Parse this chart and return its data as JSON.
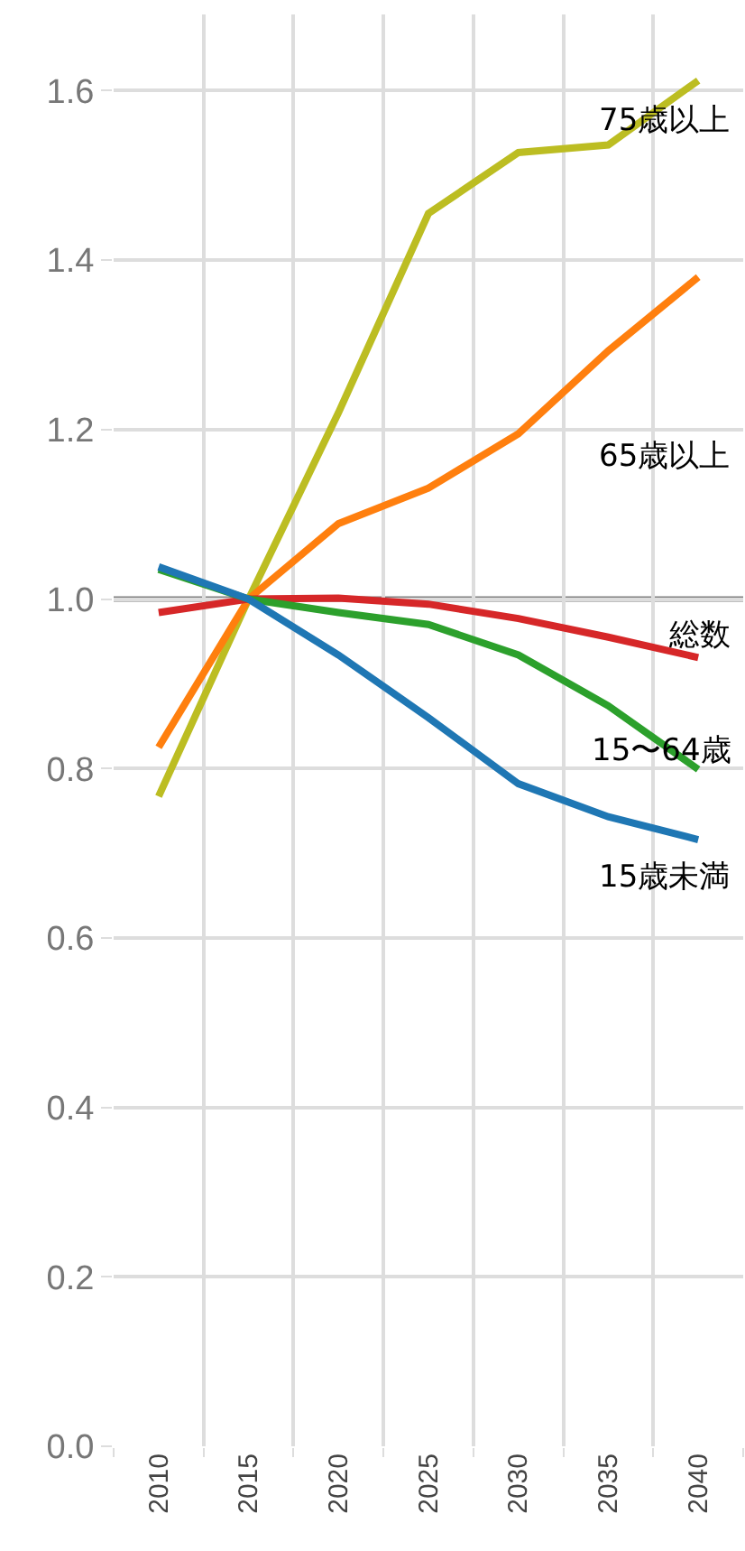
{
  "chart_data": {
    "type": "line",
    "categories": [
      "2010",
      "2015",
      "2020",
      "2025",
      "2030",
      "2035",
      "2040"
    ],
    "series": [
      {
        "name": "75歳以上",
        "color": "#bcbd22",
        "values": [
          0.767,
          1.0,
          1.22,
          1.455,
          1.527,
          1.536,
          1.612
        ]
      },
      {
        "name": "65歳以上",
        "color": "#ff7f0e",
        "values": [
          0.825,
          1.0,
          1.089,
          1.131,
          1.195,
          1.293,
          1.38
        ]
      },
      {
        "name": "総数",
        "color": "#d62728",
        "values": [
          0.984,
          1.0,
          1.001,
          0.994,
          0.977,
          0.955,
          0.931
        ]
      },
      {
        "name": "15〜64歳",
        "color": "#2ca02c",
        "values": [
          1.035,
          1.0,
          0.984,
          0.97,
          0.934,
          0.874,
          0.799
        ]
      },
      {
        "name": "15歳未満",
        "color": "#1f77b4",
        "values": [
          1.038,
          1.0,
          0.934,
          0.86,
          0.782,
          0.743,
          0.716
        ]
      }
    ],
    "ylim": [
      0,
      1.69
    ],
    "yticks": [
      {
        "value": 0,
        "label": "0.0"
      },
      0.2,
      0.4,
      0.6,
      0.8,
      {
        "value": 1,
        "label": "1.0"
      },
      1.2,
      1.4,
      1.6
    ],
    "ref_lines": [
      {
        "axis": "y",
        "value": 1,
        "color": "#808080"
      }
    ],
    "grid": true,
    "legend": false,
    "marker": "none",
    "line_style": "solid"
  }
}
